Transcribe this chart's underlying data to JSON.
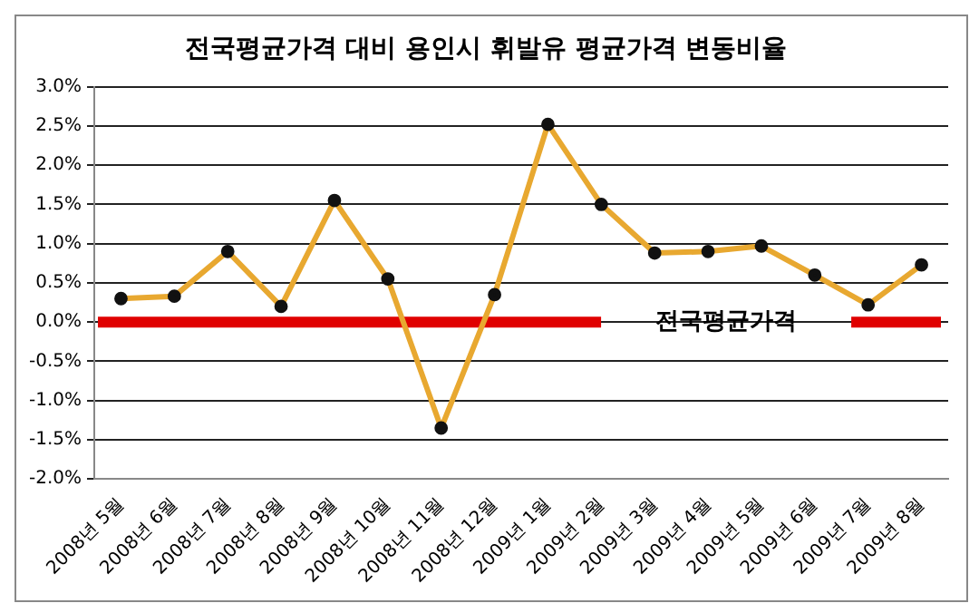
{
  "chart_data": {
    "type": "line",
    "title": "전국평균가격 대비 용인시 휘발유 평균가격 변동비율",
    "categories": [
      "2008년 5월",
      "2008년 6월",
      "2008년 7월",
      "2008년 8월",
      "2008년 9월",
      "2008년 10월",
      "2008년 11월",
      "2008년 12월",
      "2009년 1월",
      "2009년 2월",
      "2009년 3월",
      "2009년 4월",
      "2009년 5월",
      "2009년 6월",
      "2009년 7월",
      "2009년 8월"
    ],
    "series": [
      {
        "color": "#e8a830",
        "values": [
          0.3,
          0.33,
          0.9,
          0.2,
          1.55,
          0.55,
          -1.35,
          0.35,
          2.52,
          1.5,
          0.88,
          0.9,
          0.97,
          0.6,
          0.22,
          0.73
        ]
      }
    ],
    "ylim": [
      -2,
      3
    ],
    "yticks": [
      {
        "value": -2,
        "label": "-2.0%"
      },
      {
        "value": -1.5,
        "label": "-1.5%"
      },
      {
        "value": -1,
        "label": "-1.0%"
      },
      {
        "value": -0.5,
        "label": "-0.5%"
      },
      {
        "value": 0,
        "label": "0.0%"
      },
      {
        "value": 0.5,
        "label": "0.5%"
      },
      {
        "value": 1,
        "label": "1.0%"
      },
      {
        "value": 1.5,
        "label": "1.5%"
      },
      {
        "value": 2,
        "label": "2.0%"
      },
      {
        "value": 2.5,
        "label": "2.5%"
      },
      {
        "value": 3,
        "label": "3.0%"
      }
    ],
    "ref_lines": [
      {
        "axis": "y",
        "value": 0,
        "label": "전국평균가격",
        "color": "#e00000"
      }
    ],
    "grid": "y",
    "marker": "circle",
    "line_style": "solid",
    "legend": false
  }
}
